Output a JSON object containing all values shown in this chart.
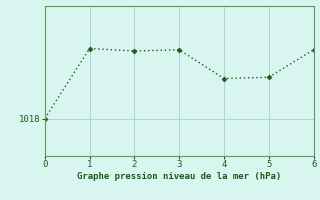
{
  "x": [
    0,
    1,
    2,
    3,
    4,
    5,
    6
  ],
  "y": [
    1018.0,
    1023.6,
    1023.4,
    1023.5,
    1021.2,
    1021.3,
    1023.5
  ],
  "line_color": "#1a5c1a",
  "marker_color": "#1a5c1a",
  "bg_color": "#d8f5f0",
  "grid_color": "#aad4cc",
  "xlabel": "Graphe pression niveau de la mer (hPa)",
  "xlabel_color": "#1a5c1a",
  "tick_color": "#1a5c1a",
  "spine_color": "#5a9a5a",
  "ytick_labels": [
    "1018"
  ],
  "ytick_values": [
    1018
  ],
  "xlim": [
    0,
    6
  ],
  "ylim": [
    1015.0,
    1027.0
  ]
}
